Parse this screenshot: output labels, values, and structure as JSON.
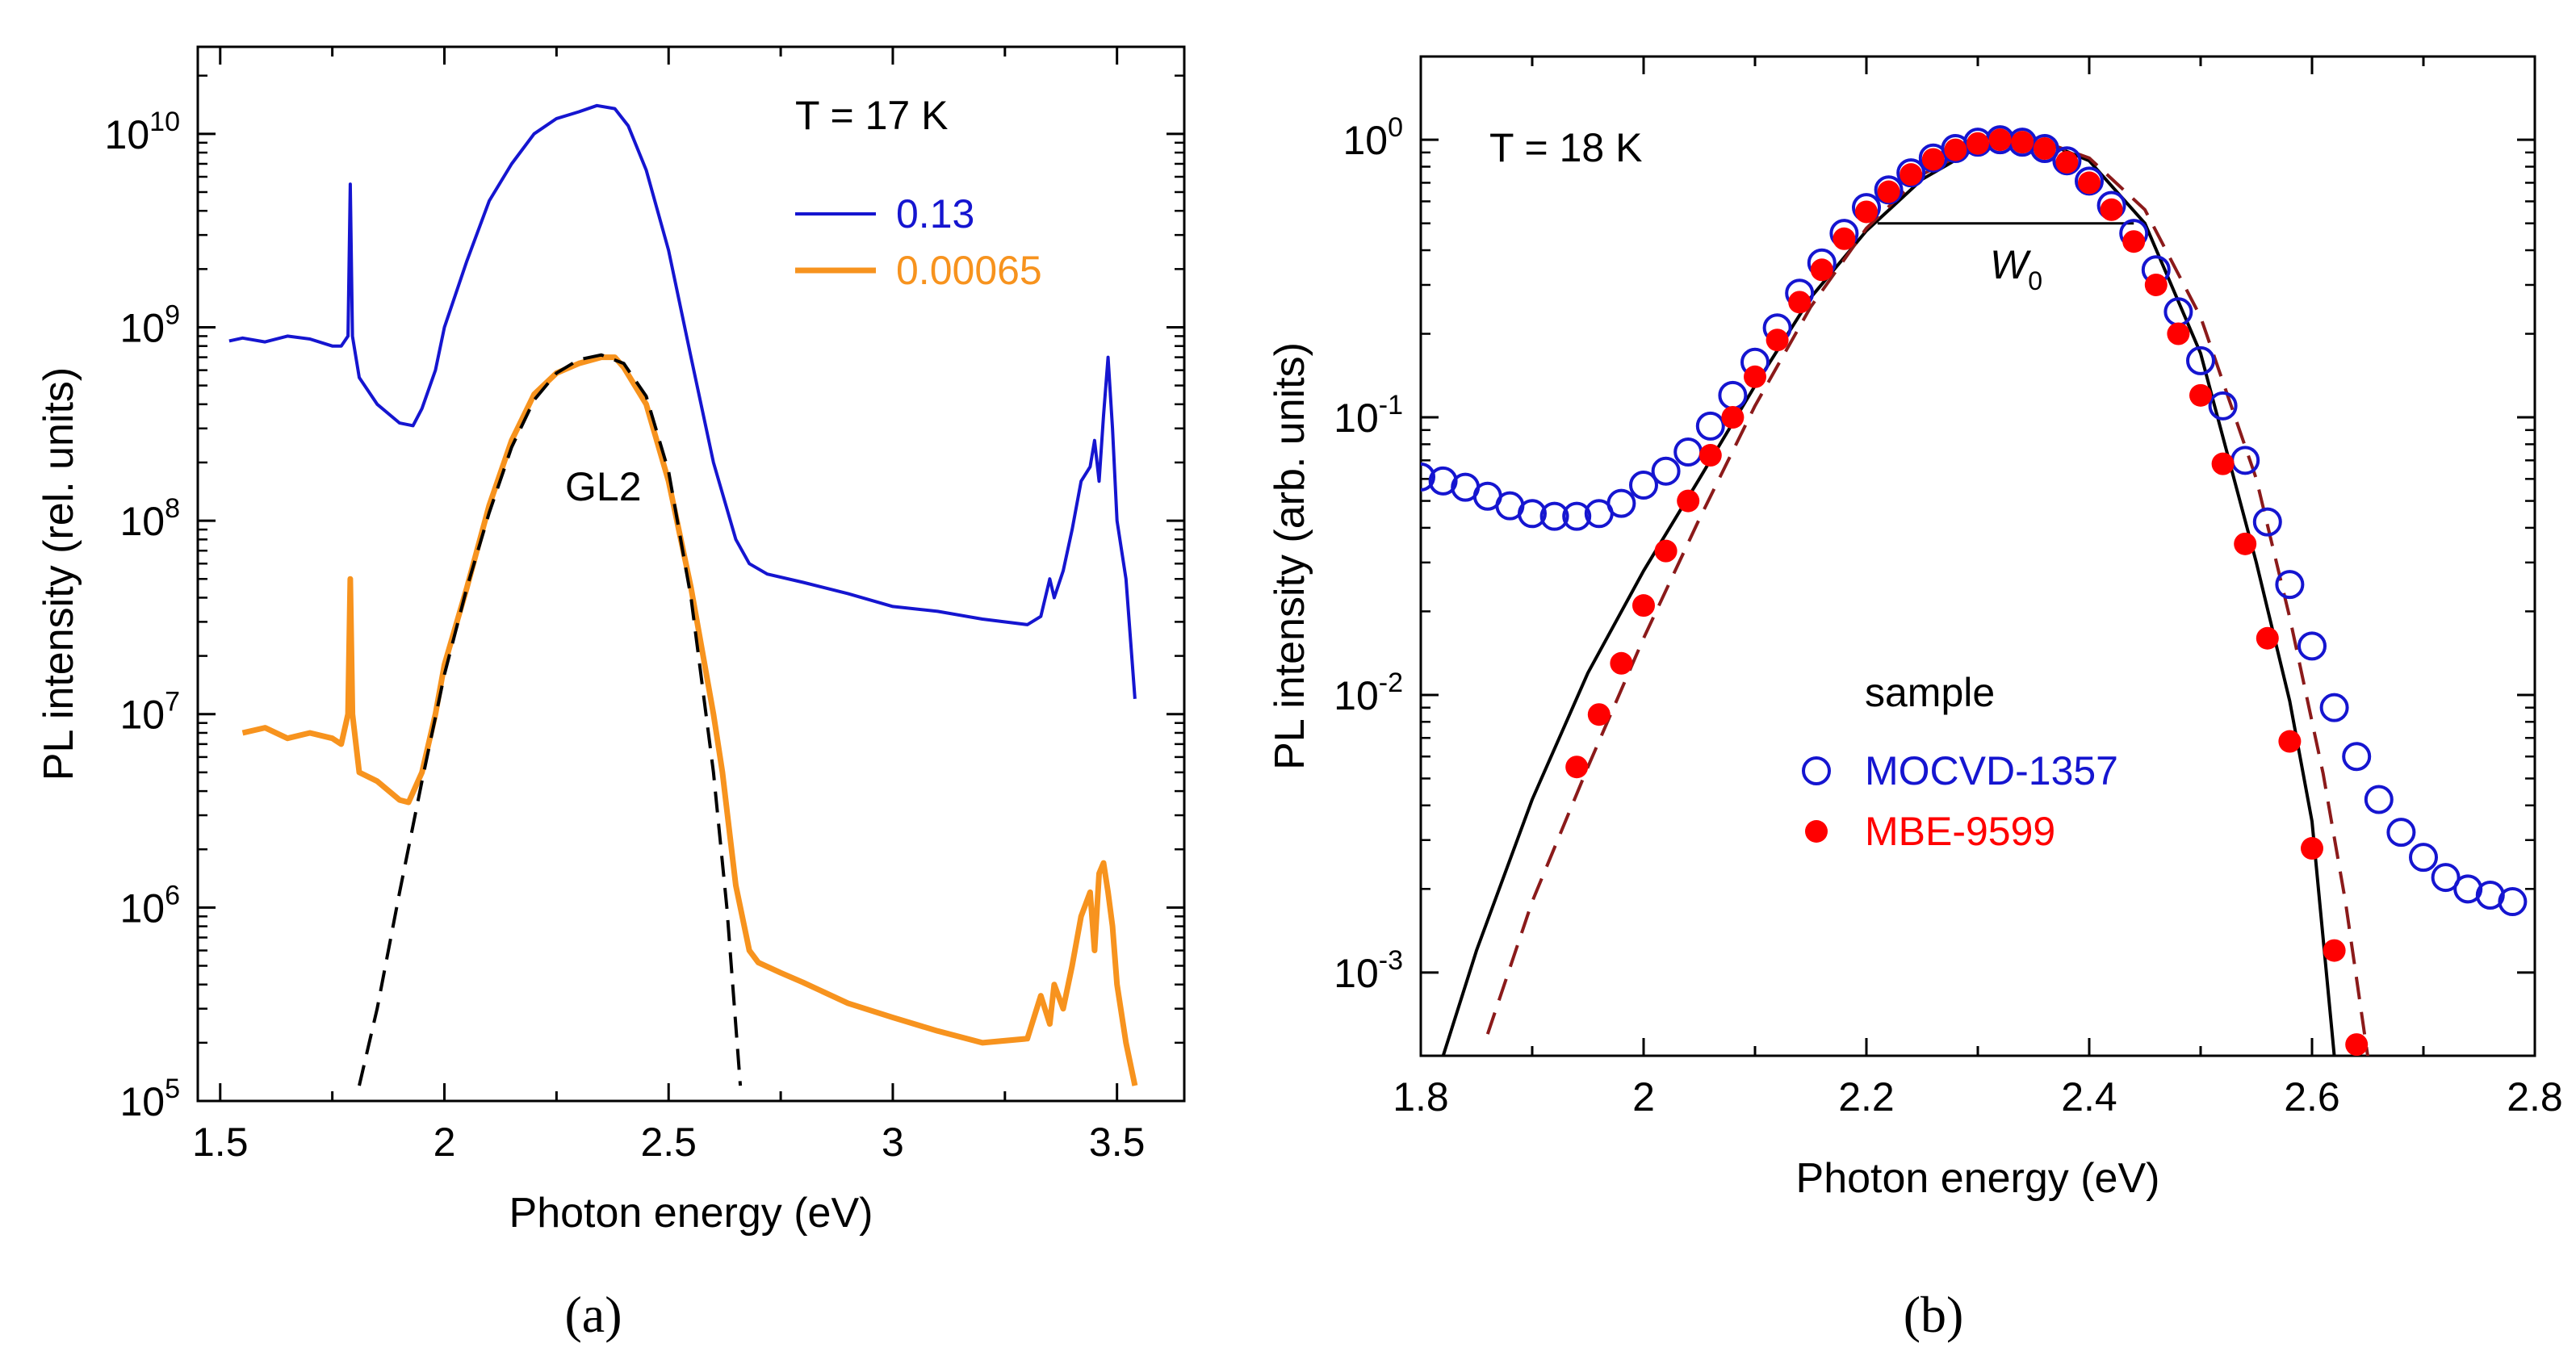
{
  "chart_data": [
    {
      "type": "line",
      "panel_label": "(a)",
      "annotation": "T = 17 K",
      "peak_label": "GL2",
      "xlabel": "Photon energy (eV)",
      "ylabel": "PL intensity (rel. units)",
      "xlim": [
        1.45,
        3.65
      ],
      "ylim_log10": [
        5,
        10.45
      ],
      "yscale": "log",
      "xticks": [
        "1.5",
        "2",
        "2.5",
        "3",
        "3.5"
      ],
      "ytick_base": "10",
      "ytick_exponents": [
        "5",
        "6",
        "7",
        "8",
        "9",
        "10"
      ],
      "legend": [
        {
          "name": "0.13",
          "color": "#1515d0"
        },
        {
          "name": "0.00065",
          "color": "#f7931e"
        }
      ],
      "series": [
        {
          "name": "0.13",
          "color": "#1515d0",
          "x": [
            1.52,
            1.55,
            1.6,
            1.65,
            1.7,
            1.75,
            1.77,
            1.785,
            1.79,
            1.795,
            1.81,
            1.85,
            1.9,
            1.93,
            1.95,
            1.98,
            2.0,
            2.05,
            2.1,
            2.15,
            2.2,
            2.25,
            2.3,
            2.34,
            2.38,
            2.41,
            2.45,
            2.5,
            2.55,
            2.6,
            2.65,
            2.68,
            2.72,
            2.8,
            2.9,
            3.0,
            3.1,
            3.2,
            3.3,
            3.33,
            3.35,
            3.36,
            3.38,
            3.4,
            3.42,
            3.44,
            3.45,
            3.46,
            3.47,
            3.48,
            3.49,
            3.5,
            3.52,
            3.54
          ],
          "y": [
            850000000.0,
            880000000.0,
            840000000.0,
            900000000.0,
            870000000.0,
            800000000.0,
            800000000.0,
            900000000.0,
            5500000000.0,
            900000000.0,
            550000000.0,
            400000000.0,
            320000000.0,
            310000000.0,
            380000000.0,
            600000000.0,
            1000000000.0,
            2200000000.0,
            4500000000.0,
            7000000000.0,
            10000000000.0,
            12000000000.0,
            13000000000.0,
            14000000000.0,
            13500000000.0,
            11000000000.0,
            6500000000.0,
            2500000000.0,
            700000000.0,
            200000000.0,
            80000000.0,
            60000000.0,
            53000000.0,
            48000000.0,
            42000000.0,
            36000000.0,
            34000000.0,
            31000000.0,
            29000000.0,
            32000000.0,
            50000000.0,
            40000000.0,
            55000000.0,
            90000000.0,
            160000000.0,
            190000000.0,
            260000000.0,
            160000000.0,
            350000000.0,
            700000000.0,
            300000000.0,
            100000000.0,
            50000000.0,
            12000000.0
          ]
        },
        {
          "name": "0.00065",
          "color": "#f7931e",
          "x": [
            1.55,
            1.6,
            1.65,
            1.7,
            1.75,
            1.77,
            1.785,
            1.79,
            1.795,
            1.81,
            1.85,
            1.9,
            1.92,
            1.95,
            1.98,
            2.0,
            2.05,
            2.1,
            2.15,
            2.2,
            2.25,
            2.3,
            2.35,
            2.38,
            2.4,
            2.45,
            2.5,
            2.55,
            2.6,
            2.62,
            2.65,
            2.68,
            2.7,
            2.75,
            2.8,
            2.9,
            3.0,
            3.1,
            3.2,
            3.3,
            3.33,
            3.35,
            3.36,
            3.38,
            3.4,
            3.42,
            3.44,
            3.45,
            3.46,
            3.47,
            3.48,
            3.49,
            3.5,
            3.52,
            3.54
          ],
          "y": [
            8000000.0,
            8500000.0,
            7500000.0,
            8000000.0,
            7500000.0,
            7000000.0,
            10000000.0,
            50000000.0,
            10000000.0,
            5000000.0,
            4500000.0,
            3600000.0,
            3500000.0,
            5000000.0,
            10000000.0,
            18000000.0,
            45000000.0,
            120000000.0,
            260000000.0,
            450000000.0,
            580000000.0,
            650000000.0,
            700000000.0,
            700000000.0,
            620000000.0,
            400000000.0,
            160000000.0,
            45000000.0,
            10000000.0,
            5000000.0,
            1300000.0,
            600000.0,
            520000.0,
            460000.0,
            410000.0,
            320000.0,
            270000.0,
            230000.0,
            200000.0,
            210000.0,
            350000.0,
            250000.0,
            400000.0,
            300000.0,
            500000.0,
            900000.0,
            1200000.0,
            600000.0,
            1500000.0,
            1700000.0,
            1200000.0,
            800000.0,
            400000.0,
            200000.0,
            120000.0
          ]
        },
        {
          "name": "GL2 fit",
          "color": "#000000",
          "dashed": true,
          "x": [
            1.81,
            1.85,
            1.9,
            1.95,
            2.0,
            2.05,
            2.1,
            2.15,
            2.2,
            2.25,
            2.3,
            2.35,
            2.4,
            2.45,
            2.5,
            2.55,
            2.6,
            2.63,
            2.66
          ],
          "y": [
            120000.0,
            300000.0,
            1200000.0,
            4500000.0,
            16000000.0,
            45000000.0,
            110000000.0,
            240000000.0,
            420000000.0,
            580000000.0,
            680000000.0,
            720000000.0,
            650000000.0,
            440000000.0,
            180000000.0,
            40000000.0,
            5000000.0,
            1000000.0,
            120000.0
          ]
        }
      ]
    },
    {
      "type": "scatter",
      "panel_label": "(b)",
      "annotation": "T = 18 K",
      "width_label": "W",
      "width_label_sub": "0",
      "xlabel": "Photon energy (eV)",
      "ylabel": "PL intensity (arb. units)",
      "xlim": [
        1.8,
        2.8
      ],
      "ylim_log10": [
        -3.3,
        0.3
      ],
      "yscale": "log",
      "xticks": [
        "1.8",
        "2",
        "2.2",
        "2.4",
        "2.6",
        "2.8"
      ],
      "ytick_base": "10",
      "ytick_exponents": [
        "-3",
        "-2",
        "-1",
        "0"
      ],
      "fwhm_line": {
        "x1": 2.21,
        "x2": 2.44,
        "y": 0.5
      },
      "legend_title": "sample",
      "legend": [
        {
          "name": "MOCVD-1357",
          "color": "#1515d0",
          "marker": "open-circle"
        },
        {
          "name": "MBE-9599",
          "color": "#ff0000",
          "marker": "filled-circle"
        }
      ],
      "series": [
        {
          "name": "MOCVD-1357",
          "color": "#1515d0",
          "marker": "open-circle",
          "x": [
            1.8,
            1.82,
            1.84,
            1.86,
            1.88,
            1.9,
            1.92,
            1.94,
            1.96,
            1.98,
            2.0,
            2.02,
            2.04,
            2.06,
            2.08,
            2.1,
            2.12,
            2.14,
            2.16,
            2.18,
            2.2,
            2.22,
            2.24,
            2.26,
            2.28,
            2.3,
            2.32,
            2.34,
            2.36,
            2.38,
            2.4,
            2.42,
            2.44,
            2.46,
            2.48,
            2.5,
            2.52,
            2.54,
            2.56,
            2.58,
            2.6,
            2.62,
            2.64,
            2.66,
            2.68,
            2.7,
            2.72,
            2.74,
            2.76,
            2.78
          ],
          "y": [
            0.061,
            0.059,
            0.056,
            0.052,
            0.048,
            0.045,
            0.044,
            0.044,
            0.045,
            0.049,
            0.057,
            0.064,
            0.075,
            0.093,
            0.12,
            0.158,
            0.21,
            0.28,
            0.36,
            0.46,
            0.57,
            0.66,
            0.76,
            0.86,
            0.93,
            0.98,
            1.0,
            0.98,
            0.93,
            0.84,
            0.71,
            0.58,
            0.46,
            0.34,
            0.24,
            0.16,
            0.11,
            0.07,
            0.042,
            0.025,
            0.015,
            0.009,
            0.006,
            0.0042,
            0.0032,
            0.0026,
            0.0022,
            0.002,
            0.0019,
            0.0018
          ]
        },
        {
          "name": "MBE-9599",
          "color": "#ff0000",
          "marker": "filled-circle",
          "x": [
            1.94,
            1.96,
            1.98,
            2.0,
            2.02,
            2.04,
            2.06,
            2.08,
            2.1,
            2.12,
            2.14,
            2.16,
            2.18,
            2.2,
            2.22,
            2.24,
            2.26,
            2.28,
            2.3,
            2.32,
            2.34,
            2.36,
            2.38,
            2.4,
            2.42,
            2.44,
            2.46,
            2.48,
            2.5,
            2.52,
            2.54,
            2.56,
            2.58,
            2.6,
            2.62,
            2.64
          ],
          "y": [
            0.0055,
            0.0085,
            0.013,
            0.021,
            0.033,
            0.05,
            0.073,
            0.1,
            0.14,
            0.19,
            0.26,
            0.34,
            0.44,
            0.55,
            0.65,
            0.75,
            0.85,
            0.92,
            0.97,
            1.0,
            0.98,
            0.93,
            0.83,
            0.7,
            0.56,
            0.43,
            0.3,
            0.2,
            0.12,
            0.068,
            0.035,
            0.016,
            0.0068,
            0.0028,
            0.0012,
            0.00055
          ]
        },
        {
          "name": "fit solid",
          "color": "#000000",
          "dashed": false,
          "x": [
            1.82,
            1.85,
            1.9,
            1.95,
            2.0,
            2.05,
            2.1,
            2.15,
            2.2,
            2.25,
            2.3,
            2.33,
            2.36,
            2.4,
            2.45,
            2.5,
            2.55,
            2.58,
            2.6,
            2.62
          ],
          "y": [
            0.0005,
            0.0012,
            0.0042,
            0.012,
            0.028,
            0.06,
            0.13,
            0.27,
            0.47,
            0.72,
            0.94,
            1.0,
            0.98,
            0.84,
            0.5,
            0.17,
            0.03,
            0.0095,
            0.0035,
            0.0005
          ]
        },
        {
          "name": "fit dashed",
          "color": "#8b1a1a",
          "dashed": true,
          "x": [
            1.86,
            1.9,
            1.95,
            2.0,
            2.05,
            2.1,
            2.15,
            2.2,
            2.25,
            2.3,
            2.33,
            2.36,
            2.4,
            2.45,
            2.5,
            2.55,
            2.58,
            2.61,
            2.63,
            2.65
          ],
          "y": [
            0.0006,
            0.0018,
            0.0055,
            0.016,
            0.043,
            0.11,
            0.25,
            0.48,
            0.75,
            0.95,
            1.0,
            0.98,
            0.86,
            0.56,
            0.23,
            0.06,
            0.019,
            0.0052,
            0.0018,
            0.0005
          ]
        }
      ]
    }
  ]
}
